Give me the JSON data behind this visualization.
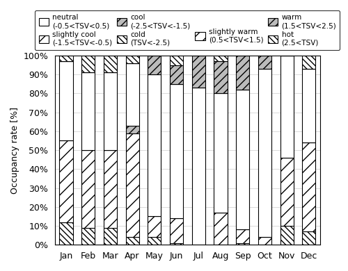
{
  "months": [
    "Jan",
    "Feb",
    "Mar",
    "Apr",
    "May",
    "Jun",
    "Jul",
    "Aug",
    "Sep",
    "Oct",
    "Nov",
    "Dec"
  ],
  "cold": [
    0.12,
    0.09,
    0.09,
    0.04,
    0.04,
    0.01,
    0.0,
    0.0,
    0.01,
    0.0,
    0.1,
    0.07
  ],
  "slightly_cool": [
    0.43,
    0.41,
    0.41,
    0.55,
    0.11,
    0.13,
    0.0,
    0.17,
    0.07,
    0.04,
    0.36,
    0.47
  ],
  "cool": [
    0.0,
    0.0,
    0.0,
    0.04,
    0.0,
    0.0,
    0.0,
    0.0,
    0.0,
    0.0,
    0.0,
    0.0
  ],
  "neutral": [
    0.42,
    0.41,
    0.41,
    0.33,
    0.75,
    0.71,
    0.83,
    0.63,
    0.74,
    0.89,
    0.54,
    0.39
  ],
  "slightly_warm": [
    0.0,
    0.0,
    0.0,
    0.0,
    0.0,
    0.0,
    0.0,
    0.0,
    0.0,
    0.0,
    0.0,
    0.0
  ],
  "warm": [
    0.0,
    0.0,
    0.0,
    0.0,
    0.1,
    0.1,
    0.17,
    0.17,
    0.18,
    0.07,
    0.0,
    0.0
  ],
  "hot": [
    0.03,
    0.09,
    0.09,
    0.04,
    0.0,
    0.05,
    0.0,
    0.03,
    0.0,
    0.0,
    0.0,
    0.07
  ],
  "ylabel": "Occupancy rate [%]",
  "ytick_vals": [
    0.0,
    0.1,
    0.2,
    0.3,
    0.4,
    0.5,
    0.6,
    0.7,
    0.8,
    0.9,
    1.0
  ],
  "ytick_labels": [
    "0%",
    "10%",
    "20%",
    "30%",
    "40%",
    "50%",
    "60%",
    "70%",
    "80%",
    "90%",
    "100%"
  ],
  "legend_row1": [
    {
      "label": "neutral",
      "range": "(-0.5<TSV<0.5)",
      "fc": "white",
      "hatch": "",
      "lw_hatch": 0.5
    },
    {
      "label": "slightly cool",
      "range": "(-1.5<TSV<-0.5)",
      "fc": "#e0e0e0",
      "hatch": "///",
      "lw_hatch": 0.5
    },
    {
      "label": "cool",
      "range": "(-2.5<TSV<-1.5)",
      "fc": "#aaaaaa",
      "hatch": "///",
      "lw_hatch": 1.0
    },
    {
      "label": "cold",
      "range": "(TSV<-2.5)",
      "fc": "#555555",
      "hatch": "///",
      "lw_hatch": 1.5
    }
  ],
  "legend_row2": [
    {
      "label": "slightly warm",
      "range": "(0.5<TSV<1.5)",
      "fc": "#e0e0e0",
      "hatch": "///",
      "lw_hatch": 0.5
    },
    {
      "label": "warm",
      "range": "(1.5<TSV<2.5)",
      "fc": "#888888",
      "hatch": "///",
      "lw_hatch": 1.0
    },
    {
      "label": "hot",
      "range": "(2.5<TSV)",
      "fc": "#444444",
      "hatch": "///",
      "lw_hatch": 1.5
    }
  ]
}
